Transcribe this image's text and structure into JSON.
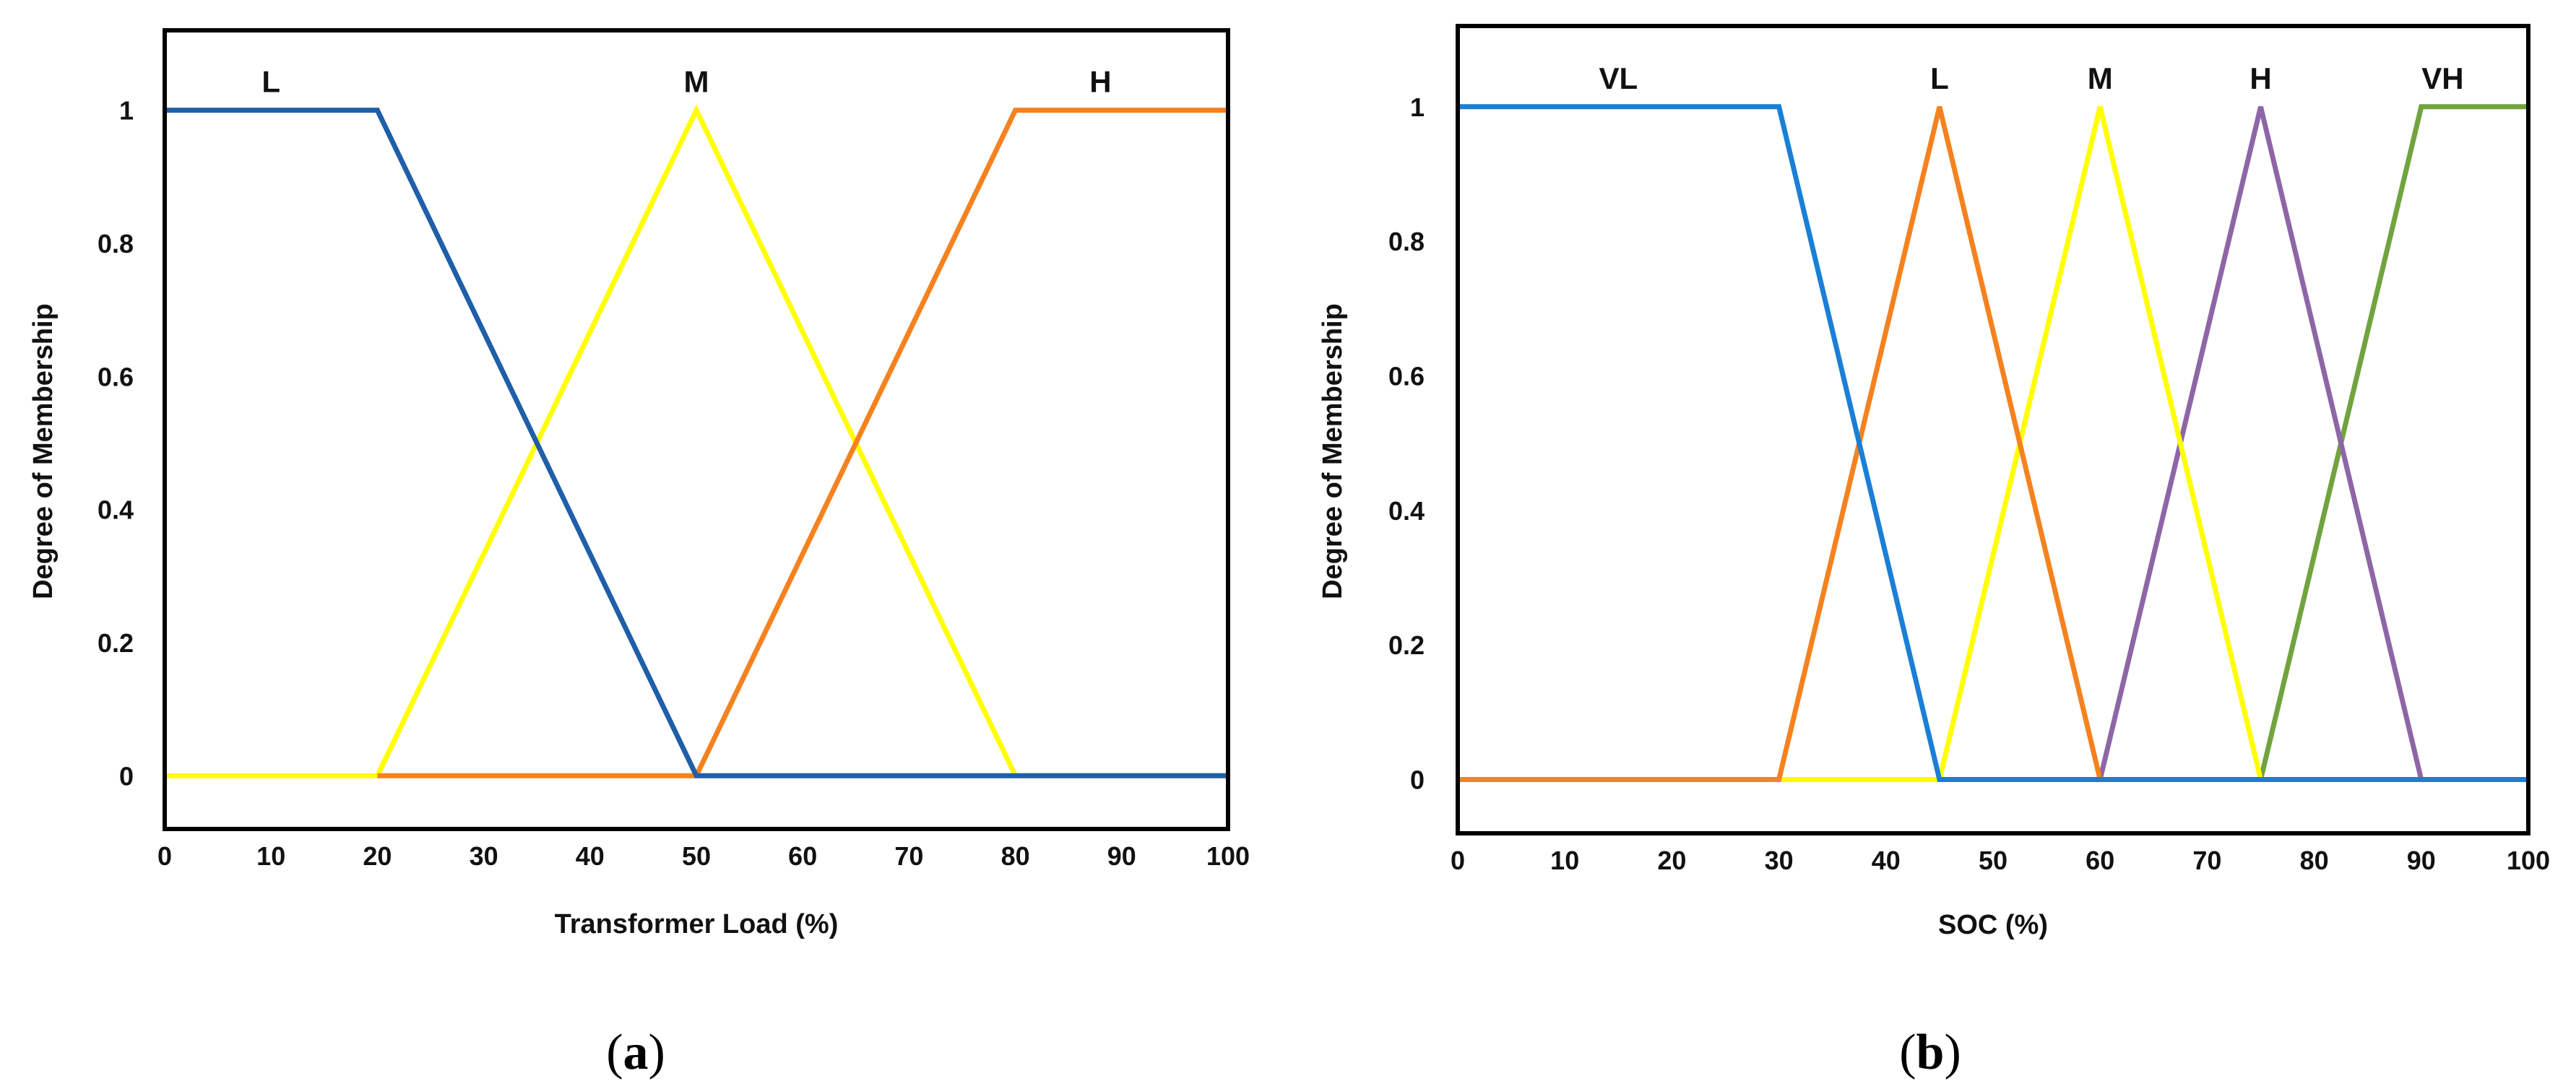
{
  "chart_data": [
    {
      "type": "line",
      "caption_letter": "a",
      "xlabel": "Transformer Load (%)",
      "ylabel": "Degree of Membership",
      "xlim": [
        0,
        100
      ],
      "ylim": [
        -0.08,
        1.12
      ],
      "xticks": [
        0,
        10,
        20,
        30,
        40,
        50,
        60,
        70,
        80,
        90,
        100
      ],
      "yticks": [
        0,
        0.2,
        0.4,
        0.6,
        0.8,
        1
      ],
      "ytick_labels": [
        "0",
        "0.2",
        "0.4",
        "0.6",
        "0.8",
        "1"
      ],
      "series": [
        {
          "name": "L",
          "color": "#1f5fa8",
          "points": [
            [
              0,
              1
            ],
            [
              20,
              1
            ],
            [
              50,
              0
            ],
            [
              100,
              0
            ]
          ],
          "label_x": 10
        },
        {
          "name": "M",
          "color": "#ffff00",
          "points": [
            [
              0,
              0
            ],
            [
              20,
              0
            ],
            [
              50,
              1
            ],
            [
              80,
              0
            ],
            [
              100,
              0
            ]
          ],
          "label_x": 50
        },
        {
          "name": "H",
          "color": "#f5821f",
          "points": [
            [
              20,
              0
            ],
            [
              50,
              0
            ],
            [
              80,
              1
            ],
            [
              100,
              1
            ]
          ],
          "label_x": 88
        }
      ],
      "draw_order": [
        1,
        2,
        0
      ]
    },
    {
      "type": "line",
      "caption_letter": "b",
      "xlabel": "SOC (%)",
      "ylabel": "Degree of Membership",
      "xlim": [
        0,
        100
      ],
      "ylim": [
        -0.08,
        1.12
      ],
      "xticks": [
        0,
        10,
        20,
        30,
        40,
        50,
        60,
        70,
        80,
        90,
        100
      ],
      "yticks": [
        0,
        0.2,
        0.4,
        0.6,
        0.8,
        1
      ],
      "ytick_labels": [
        "0",
        "0.2",
        "0.4",
        "0.6",
        "0.8",
        "1"
      ],
      "series": [
        {
          "name": "VL",
          "color": "#1a7fd6",
          "points": [
            [
              0,
              1
            ],
            [
              30,
              1
            ],
            [
              45,
              0
            ],
            [
              100,
              0
            ]
          ],
          "label_x": 15
        },
        {
          "name": "L",
          "color": "#f5821f",
          "points": [
            [
              0,
              0
            ],
            [
              30,
              0
            ],
            [
              45,
              1
            ],
            [
              60,
              0
            ],
            [
              100,
              0
            ]
          ],
          "label_x": 45
        },
        {
          "name": "M",
          "color": "#ffff00",
          "points": [
            [
              0,
              0
            ],
            [
              45,
              0
            ],
            [
              60,
              1
            ],
            [
              75,
              0
            ],
            [
              100,
              0
            ]
          ],
          "label_x": 60
        },
        {
          "name": "H",
          "color": "#8e66a6",
          "points": [
            [
              0,
              0
            ],
            [
              60,
              0
            ],
            [
              75,
              1
            ],
            [
              90,
              0
            ],
            [
              100,
              0
            ]
          ],
          "label_x": 75
        },
        {
          "name": "VH",
          "color": "#71a33e",
          "points": [
            [
              0,
              0
            ],
            [
              75,
              0
            ],
            [
              90,
              1
            ],
            [
              100,
              1
            ]
          ],
          "label_x": 92
        }
      ],
      "draw_order": [
        4,
        3,
        2,
        1,
        0
      ]
    }
  ]
}
